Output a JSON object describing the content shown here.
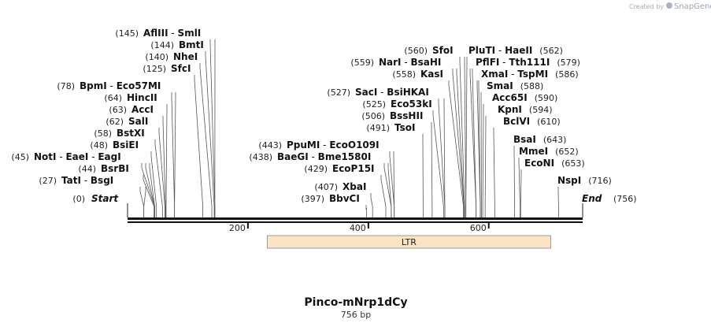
{
  "credit": {
    "text": "Created by",
    "brand": "SnapGene"
  },
  "map": {
    "name": "Pinco-mNrp1dCy",
    "length_label": "756 bp",
    "length": 756,
    "start": {
      "label": "Start",
      "pos": "(0)",
      "bp": 0
    },
    "end": {
      "label": "End",
      "pos": "(756)",
      "bp": 756
    },
    "ticks": [
      {
        "bp": 200,
        "label": "200"
      },
      {
        "bp": 400,
        "label": "400"
      },
      {
        "bp": 600,
        "label": "600"
      }
    ],
    "features": [
      {
        "name": "LTR",
        "start": 232,
        "end": 703,
        "color": "#fbe3c6"
      }
    ]
  },
  "sites": [
    {
      "id": "afliii",
      "pos": "(145)",
      "name": "AflIII",
      "sep": " - ",
      "name2": "SmlI",
      "bp": [
        145,
        145
      ]
    },
    {
      "id": "bmti",
      "pos": "(144)",
      "name": "BmtI",
      "bp": [
        144
      ]
    },
    {
      "id": "nhei",
      "pos": "(140)",
      "name": "NheI",
      "bp": [
        140
      ]
    },
    {
      "id": "sfci",
      "pos": "(125)",
      "name": "SfcI",
      "bp": [
        125
      ]
    },
    {
      "id": "bpmi",
      "pos": "(78)",
      "name": "BpmI",
      "sep": " - ",
      "name2": "Eco57MI",
      "bp": [
        78,
        78
      ]
    },
    {
      "id": "hincii",
      "pos": "(64)",
      "name": "HincII",
      "bp": [
        64
      ]
    },
    {
      "id": "acci",
      "pos": "(63)",
      "name": "AccI",
      "bp": [
        63
      ]
    },
    {
      "id": "sali",
      "pos": "(62)",
      "name": "SalI",
      "bp": [
        62
      ]
    },
    {
      "id": "bstxi",
      "pos": "(58)",
      "name": "BstXI",
      "bp": [
        58
      ]
    },
    {
      "id": "bsiei",
      "pos": "(48)",
      "name": "BsiEI",
      "bp": [
        48
      ]
    },
    {
      "id": "noti",
      "pos": "(45)",
      "name": "NotI",
      "sep": " - ",
      "name2": "EaeI",
      "sep2": " - ",
      "name3": "EagI",
      "bp": [
        45,
        45,
        45
      ]
    },
    {
      "id": "bsrbi",
      "pos": "(44)",
      "name": "BsrBI",
      "bp": [
        44
      ]
    },
    {
      "id": "tati",
      "pos": "(27)",
      "name": "TatI",
      "sep": " - ",
      "name2": "BsgI",
      "bp": [
        27,
        27
      ]
    },
    {
      "id": "ppumi",
      "pos": "(443)",
      "name": "PpuMI",
      "sep": " - ",
      "name2": "EcoO109I",
      "bp": [
        443,
        443
      ]
    },
    {
      "id": "baegi",
      "pos": "(438)",
      "name": "BaeGI",
      "sep": " - ",
      "name2": "Bme1580I",
      "bp": [
        438,
        438
      ]
    },
    {
      "id": "ecop15i",
      "pos": "(429)",
      "name": "EcoP15I",
      "bp": [
        429
      ]
    },
    {
      "id": "xbai",
      "pos": "(407)",
      "name": "XbaI",
      "bp": [
        407
      ]
    },
    {
      "id": "bbvci",
      "pos": "(397)",
      "name": "BbvCI",
      "bp": [
        397
      ]
    },
    {
      "id": "sfoi",
      "pos": "(560)",
      "name": "SfoI",
      "bp": [
        560
      ]
    },
    {
      "id": "nari",
      "pos": "(559)",
      "name": "NarI",
      "sep": " - ",
      "name2": "BsaHI",
      "bp": [
        559,
        559
      ]
    },
    {
      "id": "kasi",
      "pos": "(558)",
      "name": "KasI",
      "bp": [
        558
      ]
    },
    {
      "id": "saci",
      "pos": "(527)",
      "name": "SacI",
      "sep": " - ",
      "name2": "BsiHKAI",
      "bp": [
        527,
        527
      ]
    },
    {
      "id": "eco53ki",
      "pos": "(525)",
      "name": "Eco53kI",
      "bp": [
        525
      ]
    },
    {
      "id": "bsshii",
      "pos": "(506)",
      "name": "BssHII",
      "bp": [
        506
      ]
    },
    {
      "id": "tsoi",
      "pos": "(491)",
      "name": "TsoI",
      "bp": [
        491
      ]
    },
    {
      "id": "pluti",
      "name": "PluTI",
      "sep": " - ",
      "name2": "HaeII",
      "pos": "(562)",
      "bp": [
        562,
        562
      ]
    },
    {
      "id": "pflfi",
      "name": "PflFI",
      "sep": " - ",
      "name2": "Tth111I",
      "pos": "(579)",
      "bp": [
        579,
        579
      ]
    },
    {
      "id": "xmai",
      "name": "XmaI",
      "sep": " - ",
      "name2": "TspMI",
      "pos": "(586)",
      "bp": [
        586,
        586
      ]
    },
    {
      "id": "smai",
      "name": "SmaI",
      "pos": "(588)",
      "bp": [
        588
      ]
    },
    {
      "id": "acc65i",
      "name": "Acc65I",
      "pos": "(590)",
      "bp": [
        590
      ]
    },
    {
      "id": "kpni",
      "name": "KpnI",
      "pos": "(594)",
      "bp": [
        594
      ]
    },
    {
      "id": "bclvi",
      "name": "BclVI",
      "pos": "(610)",
      "bp": [
        610
      ]
    },
    {
      "id": "bsai",
      "name": "BsaI",
      "pos": "(643)",
      "bp": [
        643
      ]
    },
    {
      "id": "mmei",
      "name": "MmeI",
      "pos": "(652)",
      "bp": [
        652
      ]
    },
    {
      "id": "econi",
      "name": "EcoNI",
      "pos": "(653)",
      "bp": [
        653
      ]
    },
    {
      "id": "nspi",
      "name": "NspI",
      "pos": "(716)",
      "bp": [
        716
      ]
    }
  ]
}
